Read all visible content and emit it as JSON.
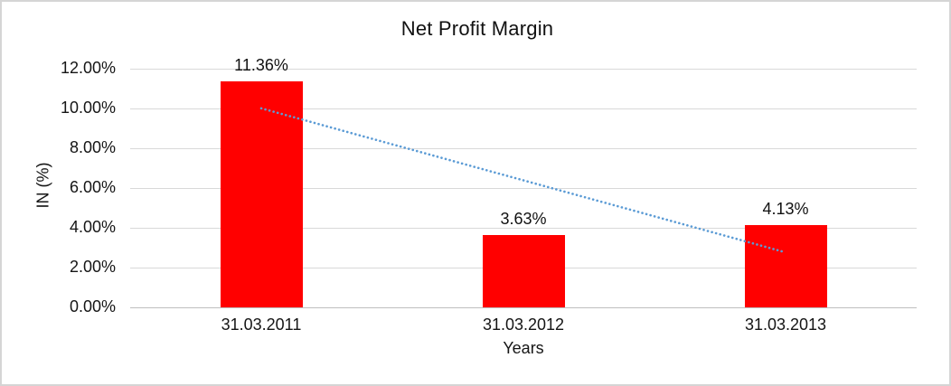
{
  "chart_data": {
    "type": "bar",
    "title": "Net Profit Margin",
    "categories": [
      "31.03.2011",
      "31.03.2012",
      "31.03.2013"
    ],
    "values": [
      11.36,
      3.63,
      4.13
    ],
    "data_labels": [
      "11.36%",
      "3.63%",
      "4.13%"
    ],
    "xlabel": "Years",
    "ylabel": "IN (%)",
    "ylim": [
      0,
      12
    ],
    "yticks": [
      0,
      2,
      4,
      6,
      8,
      10,
      12
    ],
    "ytick_labels": [
      "0.00%",
      "2.00%",
      "4.00%",
      "6.00%",
      "8.00%",
      "10.00%",
      "12.00%"
    ],
    "grid": true,
    "legend": "none",
    "bar_color": "#ff0000",
    "trendline": {
      "type": "linear",
      "style": "dotted",
      "color": "#5b9bd5",
      "start_value": 9.99,
      "end_value": 2.76
    }
  }
}
